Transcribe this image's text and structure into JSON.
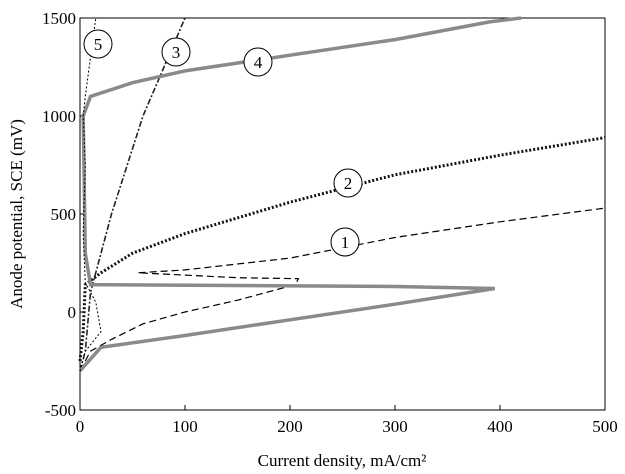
{
  "chart_data": {
    "type": "line",
    "xlabel": "Current density, mA/cm²",
    "ylabel": "Anode potential, SCE (mV)",
    "xlim": [
      0,
      500
    ],
    "ylim": [
      -500,
      1500
    ],
    "xticks": [
      0,
      100,
      200,
      300,
      400,
      500
    ],
    "yticks": [
      -500,
      0,
      500,
      1000,
      1500
    ],
    "series": [
      {
        "name": "1",
        "color": "#000000",
        "style": "dashed",
        "x": [
          0,
          10,
          30,
          60,
          100,
          150,
          205,
          208,
          150,
          55,
          100,
          200,
          300,
          400,
          500
        ],
        "values": [
          -300,
          -200,
          -140,
          -60,
          0,
          60,
          140,
          170,
          175,
          200,
          215,
          275,
          380,
          460,
          530
        ]
      },
      {
        "name": "2",
        "color": "#111111",
        "style": "dotted",
        "x": [
          0,
          3,
          5,
          20,
          50,
          100,
          200,
          300,
          400,
          500
        ],
        "values": [
          -250,
          -100,
          140,
          200,
          300,
          400,
          560,
          700,
          800,
          890
        ]
      },
      {
        "name": "3",
        "color": "#222222",
        "style": "dashdot",
        "x": [
          0,
          5,
          10,
          30,
          60,
          100
        ],
        "values": [
          -300,
          -200,
          100,
          500,
          1000,
          1500
        ]
      },
      {
        "name": "4",
        "color": "#8a8a8a",
        "style": "solid",
        "x": [
          0,
          20,
          100,
          200,
          300,
          395,
          300,
          10,
          5,
          3,
          10,
          50,
          100,
          200,
          300,
          390,
          420
        ],
        "values": [
          -300,
          -180,
          -120,
          -40,
          40,
          120,
          130,
          140,
          300,
          1000,
          1100,
          1170,
          1230,
          1310,
          1390,
          1480,
          1500
        ]
      },
      {
        "name": "5",
        "color": "#000000",
        "style": "thin",
        "x": [
          0,
          5,
          20,
          15,
          5,
          3,
          5,
          3,
          5,
          10,
          15
        ],
        "values": [
          -300,
          -200,
          -100,
          50,
          150,
          400,
          750,
          1000,
          1100,
          1300,
          1500
        ]
      }
    ]
  }
}
